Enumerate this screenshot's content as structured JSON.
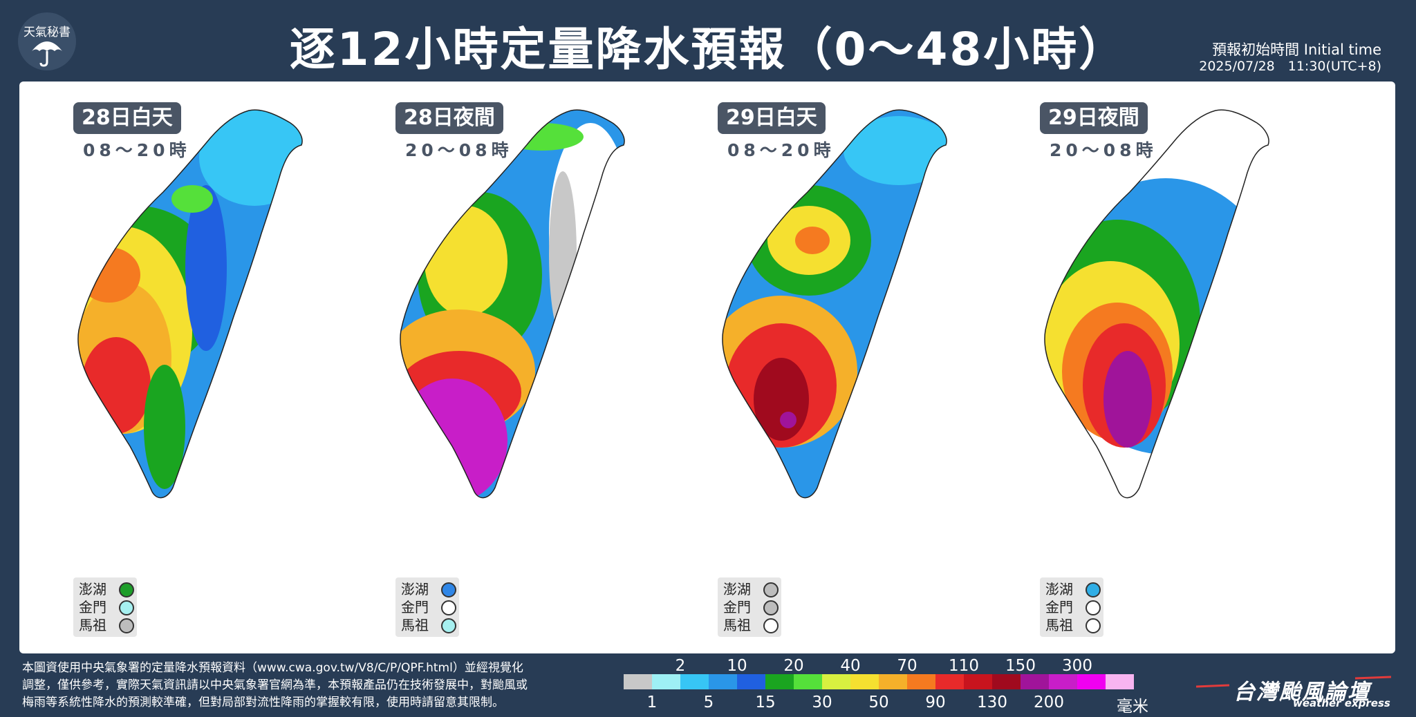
{
  "header": {
    "logo_text": "天氣秘書",
    "title": "逐12小時定量降水預報（0～48小時）",
    "initial_label": "預報初始時間 Initial time",
    "initial_time": "2025/07/28　11:30(UTC+8)"
  },
  "maps": [
    {
      "period": "28日白天",
      "hours": "08～20時",
      "islands": [
        {
          "name": "澎湖",
          "color": "#1e9e2a"
        },
        {
          "name": "金門",
          "color": "#a6f0f0"
        },
        {
          "name": "馬祖",
          "color": "#bdbdbd"
        }
      ]
    },
    {
      "period": "28日夜間",
      "hours": "20～08時",
      "islands": [
        {
          "name": "澎湖",
          "color": "#2f86e6"
        },
        {
          "name": "金門",
          "color": "#ffffff"
        },
        {
          "name": "馬祖",
          "color": "#a6f0f0"
        }
      ]
    },
    {
      "period": "29日白天",
      "hours": "08～20時",
      "islands": [
        {
          "name": "澎湖",
          "color": "#bdbdbd"
        },
        {
          "name": "金門",
          "color": "#bdbdbd"
        },
        {
          "name": "馬祖",
          "color": "#ffffff"
        }
      ]
    },
    {
      "period": "29日夜間",
      "hours": "20～08時",
      "islands": [
        {
          "name": "澎湖",
          "color": "#2faee6"
        },
        {
          "name": "金門",
          "color": "#ffffff"
        },
        {
          "name": "馬祖",
          "color": "#ffffff"
        }
      ]
    }
  ],
  "footer": {
    "note_line1": "本圖資使用中央氣象署的定量降水預報資料（www.cwa.gov.tw/V8/C/P/QPF.html）並經視覺化",
    "note_line2": "調整，僅供參考，實際天氣資訊請以中央氣象署官網為準，本預報產品仍在技術發展中，對颱風或",
    "note_line3": "梅雨等系統性降水的預測較準確，但對局部對流性降雨的掌握較有限，使用時請留意其限制。",
    "unit": "毫米",
    "brand": "台灣颱風論壇",
    "brand_sub": "weather express"
  },
  "color_scale": {
    "colors": [
      "#c8c8c8",
      "#9ef0f5",
      "#37c6f5",
      "#2a96e8",
      "#2060e0",
      "#1aa520",
      "#55e03a",
      "#d8f040",
      "#f5e030",
      "#f5b02a",
      "#f57a20",
      "#e82a2a",
      "#c8141e",
      "#a00a1e",
      "#a0149a",
      "#c81ec8",
      "#f000f0",
      "#f8b4f0"
    ],
    "top_labels": [
      "2",
      "10",
      "20",
      "40",
      "70",
      "110",
      "150",
      "300"
    ],
    "bottom_labels": [
      "1",
      "5",
      "15",
      "30",
      "50",
      "90",
      "130",
      "200"
    ]
  }
}
